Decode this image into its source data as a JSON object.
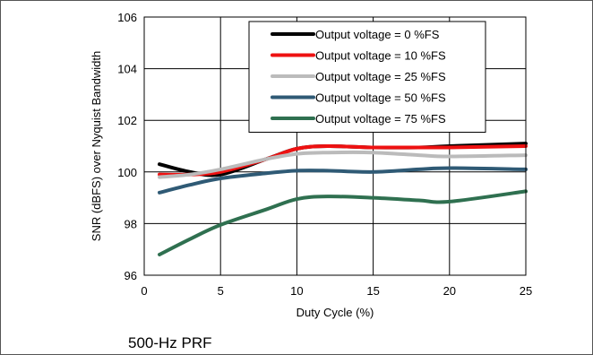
{
  "caption": "500-Hz PRF",
  "chart_data": {
    "type": "line",
    "xlabel": "Duty Cycle (%)",
    "ylabel": "SNR (dBFS) over Nyquist Bandwidth",
    "xlim": [
      0,
      25
    ],
    "ylim": [
      96,
      106
    ],
    "xticks": [
      0,
      5,
      10,
      15,
      20,
      25
    ],
    "yticks": [
      96,
      98,
      100,
      102,
      104,
      106
    ],
    "grid": true,
    "legend_position": "top-right",
    "series": [
      {
        "name": "Output voltage = 0 %FS",
        "color": "#000000",
        "x": [
          1,
          3,
          5,
          8,
          10,
          12,
          15,
          18,
          20,
          25
        ],
        "y": [
          100.3,
          100.0,
          99.9,
          100.5,
          100.9,
          101.0,
          100.95,
          100.95,
          101.0,
          101.1
        ]
      },
      {
        "name": "Output voltage = 10 %FS",
        "color": "#ee1111",
        "x": [
          1,
          3,
          5,
          8,
          10,
          12,
          15,
          18,
          20,
          25
        ],
        "y": [
          99.9,
          99.9,
          100.0,
          100.5,
          100.9,
          101.0,
          100.95,
          100.95,
          100.95,
          101.0
        ]
      },
      {
        "name": "Output voltage = 25 %FS",
        "color": "#bbbbbb",
        "x": [
          1,
          3,
          5,
          8,
          10,
          12,
          15,
          18,
          20,
          25
        ],
        "y": [
          99.8,
          99.9,
          100.1,
          100.5,
          100.7,
          100.75,
          100.75,
          100.65,
          100.6,
          100.65
        ]
      },
      {
        "name": "Output voltage = 50 %FS",
        "color": "#2f5a75",
        "x": [
          1,
          3,
          5,
          8,
          10,
          12,
          15,
          18,
          20,
          25
        ],
        "y": [
          99.2,
          99.5,
          99.75,
          99.95,
          100.05,
          100.05,
          100.0,
          100.1,
          100.15,
          100.1
        ]
      },
      {
        "name": "Output voltage = 75 %FS",
        "color": "#2f7050",
        "x": [
          1,
          3,
          5,
          8,
          10,
          12,
          15,
          18,
          20,
          25
        ],
        "y": [
          96.8,
          97.4,
          97.95,
          98.55,
          98.95,
          99.05,
          99.0,
          98.9,
          98.85,
          99.25
        ]
      }
    ]
  }
}
